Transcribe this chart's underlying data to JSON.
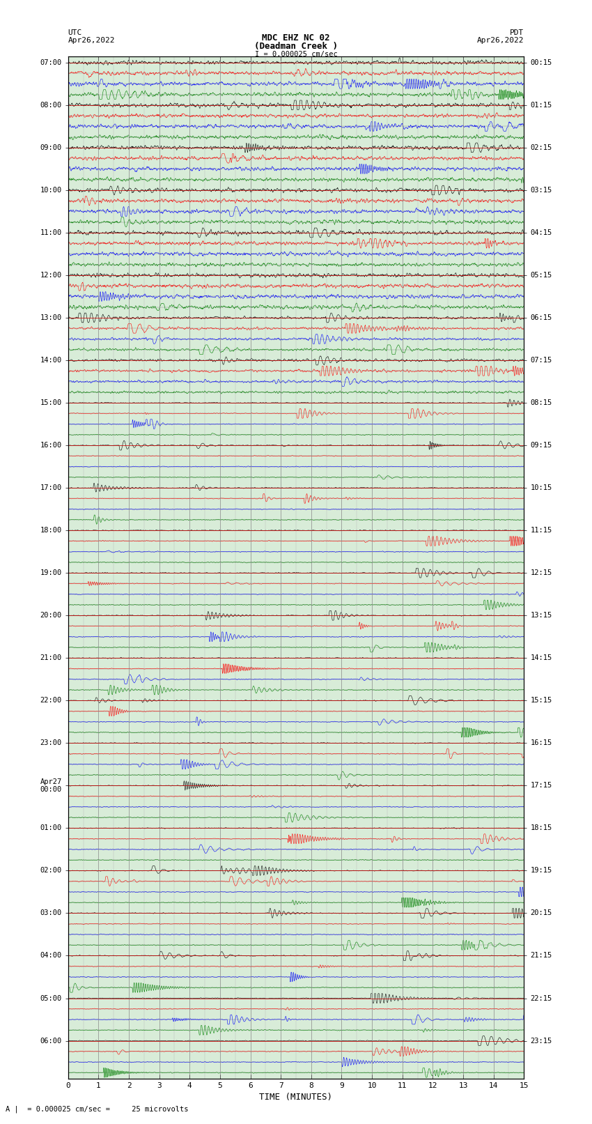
{
  "title_line1": "MDC EHZ NC 02",
  "title_line2": "(Deadman Creek )",
  "scale_text": "I = 0.000025 cm/sec",
  "label_left_top1": "UTC",
  "label_left_top2": "Apr26,2022",
  "label_right_top1": "PDT",
  "label_right_top2": "Apr26,2022",
  "bottom_label": "TIME (MINUTES)",
  "bottom_note": "A |  = 0.000025 cm/sec =     25 microvolts",
  "xlim": [
    0,
    15
  ],
  "xticks": [
    0,
    1,
    2,
    3,
    4,
    5,
    6,
    7,
    8,
    9,
    10,
    11,
    12,
    13,
    14,
    15
  ],
  "colors_cycle": [
    "black",
    "red",
    "blue",
    "green"
  ],
  "left_times": [
    "07:00",
    "",
    "",
    "",
    "08:00",
    "",
    "",
    "",
    "09:00",
    "",
    "",
    "",
    "10:00",
    "",
    "",
    "",
    "11:00",
    "",
    "",
    "",
    "12:00",
    "",
    "",
    "",
    "13:00",
    "",
    "",
    "",
    "14:00",
    "",
    "",
    "",
    "15:00",
    "",
    "",
    "",
    "16:00",
    "",
    "",
    "",
    "17:00",
    "",
    "",
    "",
    "18:00",
    "",
    "",
    "",
    "19:00",
    "",
    "",
    "",
    "20:00",
    "",
    "",
    "",
    "21:00",
    "",
    "",
    "",
    "22:00",
    "",
    "",
    "",
    "23:00",
    "",
    "",
    "",
    "Apr27\n00:00",
    "",
    "",
    "",
    "01:00",
    "",
    "",
    "",
    "02:00",
    "",
    "",
    "",
    "03:00",
    "",
    "",
    "",
    "04:00",
    "",
    "",
    "",
    "05:00",
    "",
    "",
    "",
    "06:00",
    "",
    "",
    ""
  ],
  "right_times": [
    "00:15",
    "",
    "",
    "",
    "01:15",
    "",
    "",
    "",
    "02:15",
    "",
    "",
    "",
    "03:15",
    "",
    "",
    "",
    "04:15",
    "",
    "",
    "",
    "05:15",
    "",
    "",
    "",
    "06:15",
    "",
    "",
    "",
    "07:15",
    "",
    "",
    "",
    "08:15",
    "",
    "",
    "",
    "09:15",
    "",
    "",
    "",
    "10:15",
    "",
    "",
    "",
    "11:15",
    "",
    "",
    "",
    "12:15",
    "",
    "",
    "",
    "13:15",
    "",
    "",
    "",
    "14:15",
    "",
    "",
    "",
    "15:15",
    "",
    "",
    "",
    "16:15",
    "",
    "",
    "",
    "17:15",
    "",
    "",
    "",
    "18:15",
    "",
    "",
    "",
    "19:15",
    "",
    "",
    "",
    "20:15",
    "",
    "",
    "",
    "21:15",
    "",
    "",
    "",
    "22:15",
    "",
    "",
    "",
    "23:15",
    "",
    "",
    ""
  ],
  "bg_color": "#d8ecd8",
  "seismic_seed": 42,
  "num_rows": 96
}
